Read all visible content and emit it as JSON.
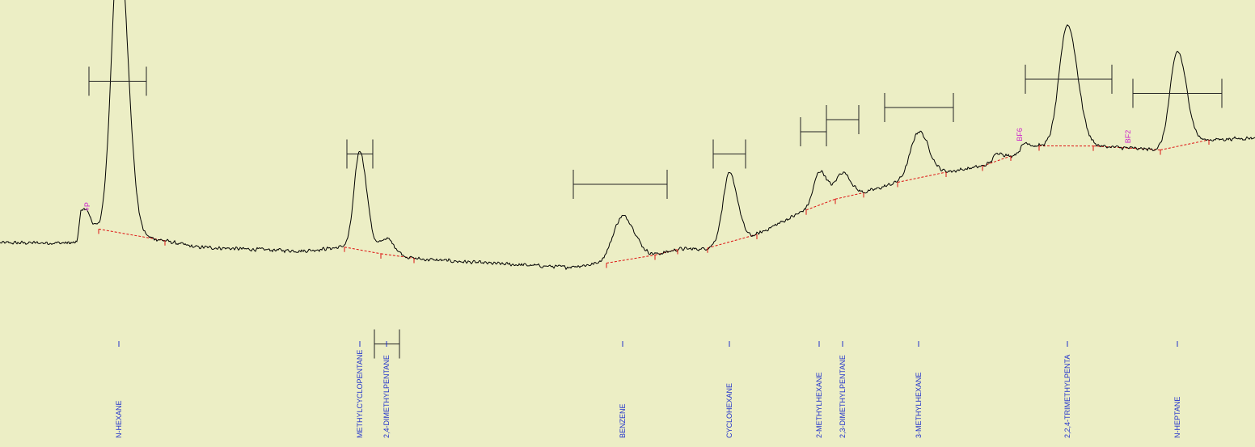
{
  "chart_data": {
    "type": "line",
    "title": "",
    "xlabel": "",
    "ylabel": "",
    "grid": false,
    "colors": {
      "background": "#ECEEC5",
      "trace": "#000000",
      "baseline": "#DD1111",
      "peak_label": "#2233CC",
      "marker_label": "#CC22CC",
      "width_bar": "#222222"
    },
    "x_range": [
      0,
      1552
    ],
    "y_range": [
      0,
      100
    ],
    "baseline_drift": [
      [
        0,
        20.5
      ],
      [
        95,
        20.5
      ],
      [
        100,
        27.5
      ],
      [
        120,
        24
      ],
      [
        205,
        21
      ],
      [
        240,
        19.5
      ],
      [
        300,
        19
      ],
      [
        375,
        18.5
      ],
      [
        425,
        19.5
      ],
      [
        480,
        17.5
      ],
      [
        520,
        16.5
      ],
      [
        600,
        15.5
      ],
      [
        700,
        14.5
      ],
      [
        750,
        15.5
      ],
      [
        800,
        17
      ],
      [
        840,
        19
      ],
      [
        870,
        19
      ],
      [
        930,
        22
      ],
      [
        995,
        28.5
      ],
      [
        1035,
        31.5
      ],
      [
        1070,
        33
      ],
      [
        1110,
        35.5
      ],
      [
        1170,
        38
      ],
      [
        1215,
        39.5
      ],
      [
        1250,
        42
      ],
      [
        1285,
        44.5
      ],
      [
        1350,
        44.5
      ],
      [
        1435,
        43.5
      ],
      [
        1495,
        46
      ],
      [
        1552,
        46.5
      ]
    ],
    "peaks": [
      {
        "name": "N-HEXANE",
        "x": 147,
        "height": 73,
        "width": 9
      },
      {
        "name": "METHYLCYCLOPENTANE",
        "x": 445,
        "height": 24.5,
        "width": 7
      },
      {
        "name": "2,4-DIMETHYLPENTANE",
        "x": 478,
        "height": 4,
        "width": 8
      },
      {
        "name": "BENZENE",
        "x": 770,
        "height": 11,
        "width": 12
      },
      {
        "name": "CYCLOHEXANE",
        "x": 902,
        "height": 17,
        "width": 8
      },
      {
        "name": "2-METHYLHEXANE",
        "x": 1013,
        "height": 6.5,
        "width": 7
      },
      {
        "name": "2,3-DIMETHYLPENTANE",
        "x": 1042,
        "height": 6,
        "width": 8
      },
      {
        "name": "3-METHYLHEXANE",
        "x": 1136,
        "height": 11.5,
        "width": 10
      },
      {
        "name": "2,2,4-TRIMETHYLPENTA",
        "x": 1320,
        "height": 30,
        "width": 10
      },
      {
        "name": "N-HEPTANE",
        "x": 1456,
        "height": 23.5,
        "width": 9
      }
    ],
    "minor_peaks": [
      {
        "x": 106,
        "height": 2.5,
        "width": 4
      },
      {
        "x": 1017,
        "height": 2,
        "width": 9
      },
      {
        "x": 1234,
        "height": 2,
        "width": 5
      },
      {
        "x": 1268,
        "height": 2,
        "width": 5
      }
    ],
    "noise_amplitude": 0.55,
    "markers": [
      {
        "label": "+P",
        "x": 111
      },
      {
        "label": "BF6",
        "x": 1264
      },
      {
        "label": "BF2",
        "x": 1398
      }
    ],
    "integration_bounds": [
      [
        122,
        204
      ],
      [
        426,
        471
      ],
      [
        471,
        512
      ],
      [
        750,
        810
      ],
      [
        810,
        838
      ],
      [
        875,
        936
      ],
      [
        997,
        1033
      ],
      [
        1033,
        1068
      ],
      [
        1110,
        1170
      ],
      [
        1215,
        1250
      ],
      [
        1285,
        1352
      ],
      [
        1352,
        1435
      ],
      [
        1435,
        1495
      ]
    ],
    "width_bars": [
      {
        "x1": 110,
        "x2": 181,
        "y": 60.5
      },
      {
        "x1": 429,
        "x2": 461,
        "y": 42.5
      },
      {
        "x1": 463,
        "x2": 494,
        "y": -4.5
      },
      {
        "x1": 709,
        "x2": 825,
        "y": 35
      },
      {
        "x1": 882,
        "x2": 922,
        "y": 42.5
      },
      {
        "x1": 990,
        "x2": 1022,
        "y": 48
      },
      {
        "x1": 1022,
        "x2": 1062,
        "y": 51
      },
      {
        "x1": 1094,
        "x2": 1179,
        "y": 54
      },
      {
        "x1": 1268,
        "x2": 1375,
        "y": 61
      },
      {
        "x1": 1401,
        "x2": 1511,
        "y": 57.5
      }
    ]
  }
}
